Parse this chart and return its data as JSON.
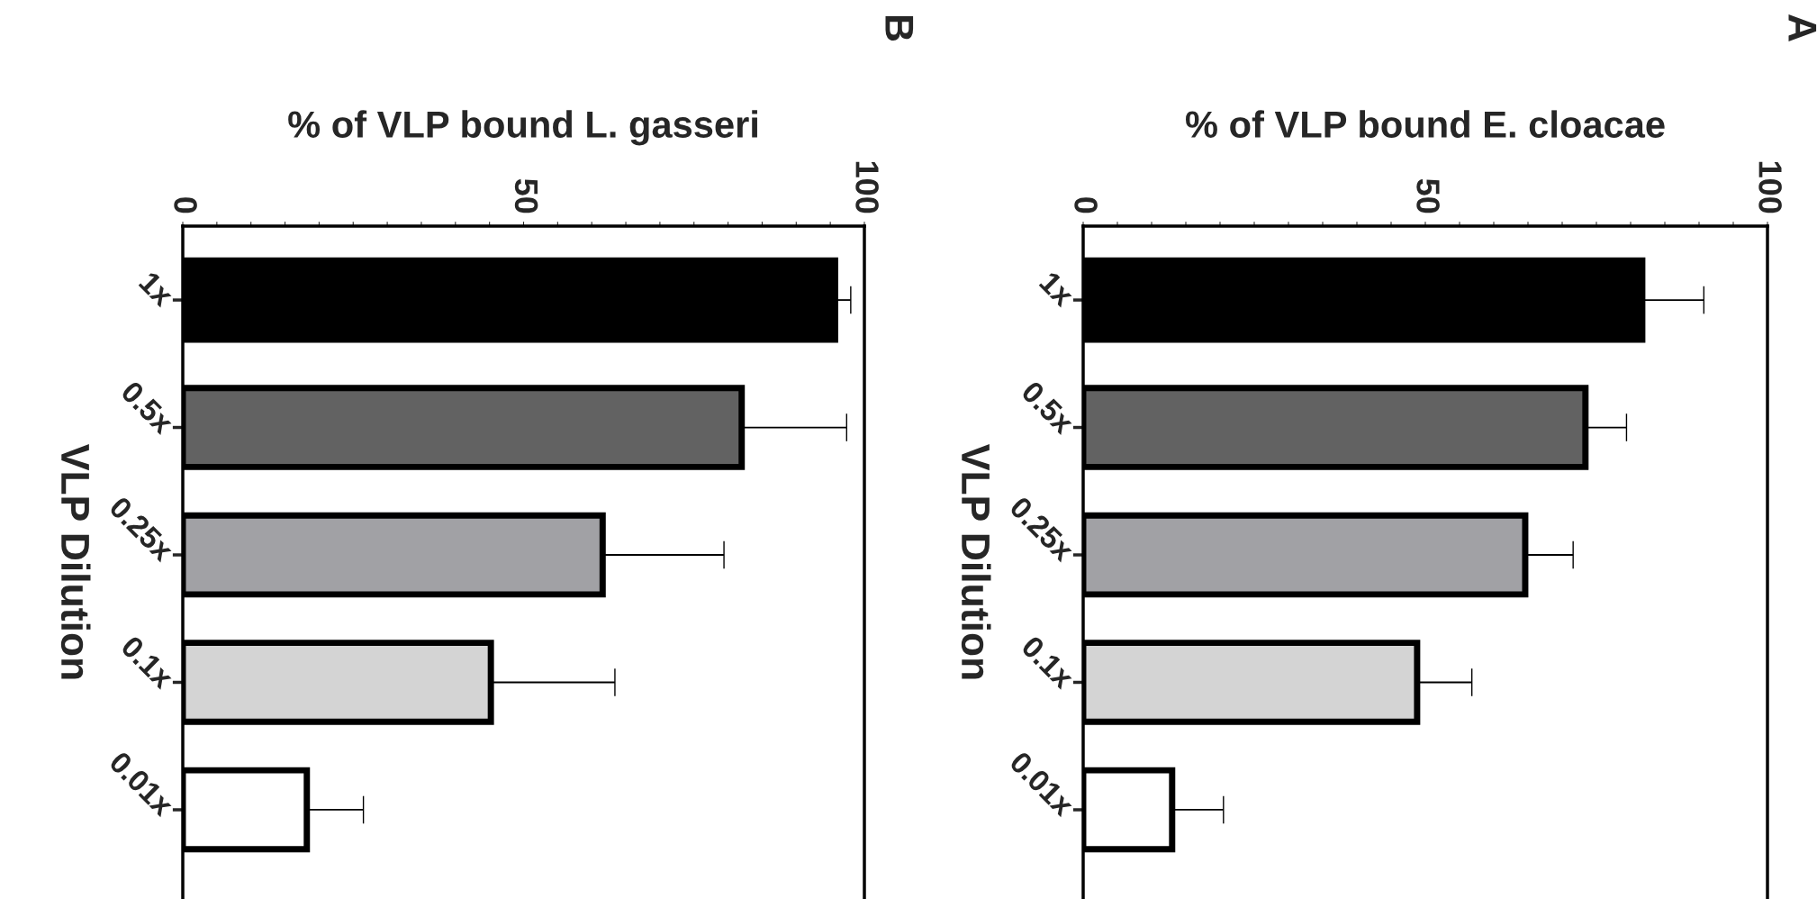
{
  "chart_data": [
    {
      "type": "bar",
      "orientation": "horizontal",
      "title": "A",
      "xlabel": "% of VLP bound E. cloacae",
      "ylabel": "VLP Dilution",
      "categories": [
        "1x",
        "0.5x",
        "0.25x",
        "0.1x",
        "0.01x"
      ],
      "values": [
        81.7,
        73.4,
        64.6,
        48.8,
        13
      ],
      "errors": [
        [
          81.7,
          90.7
        ],
        [
          73.4,
          79.4
        ],
        [
          64.6,
          71.6
        ],
        [
          48.8,
          56.8
        ],
        [
          13,
          20.5
        ]
      ],
      "colors": [
        "#000000",
        "#626262",
        "#a1a1a5",
        "#d4d4d4",
        "#ffffff"
      ],
      "xlim": [
        0,
        100
      ],
      "xticks": [
        0,
        {
          "value": 5,
          "label": null
        },
        {
          "value": 10,
          "label": null
        },
        {
          "value": 15,
          "label": null
        },
        {
          "value": 20,
          "label": null
        },
        {
          "value": 25,
          "label": null
        },
        {
          "value": 30,
          "label": null
        },
        {
          "value": 35,
          "label": null
        },
        {
          "value": 40,
          "label": null
        },
        {
          "value": 45,
          "label": null
        },
        50,
        {
          "value": 55,
          "label": null
        },
        {
          "value": 60,
          "label": null
        },
        {
          "value": 65,
          "label": null
        },
        {
          "value": 70,
          "label": null
        },
        {
          "value": 75,
          "label": null
        },
        {
          "value": 80,
          "label": null
        },
        {
          "value": 85,
          "label": null
        },
        {
          "value": 90,
          "label": null
        },
        {
          "value": 95,
          "label": null
        },
        100
      ],
      "grid": false,
      "legend": false
    },
    {
      "type": "bar",
      "orientation": "horizontal",
      "title": "B",
      "xlabel": "% of VLP bound L. gasseri",
      "ylabel": "VLP Dilution",
      "categories": [
        "1x",
        "0.5x",
        "0.25x",
        "0.1x",
        "0.01x"
      ],
      "values": [
        95.7,
        82,
        61.6,
        45.2,
        18.2
      ],
      "errors": [
        [
          95.7,
          98
        ],
        [
          82,
          97.4
        ],
        [
          61.6,
          79.4
        ],
        [
          45.2,
          63.4
        ],
        [
          18.2,
          26.5
        ]
      ],
      "colors": [
        "#000000",
        "#626262",
        "#a1a1a5",
        "#d4d4d4",
        "#ffffff"
      ],
      "xlim": [
        0,
        100
      ],
      "xticks": [
        0,
        {
          "value": 5,
          "label": null
        },
        {
          "value": 10,
          "label": null
        },
        {
          "value": 15,
          "label": null
        },
        {
          "value": 20,
          "label": null
        },
        {
          "value": 25,
          "label": null
        },
        {
          "value": 30,
          "label": null
        },
        {
          "value": 35,
          "label": null
        },
        {
          "value": 40,
          "label": null
        },
        {
          "value": 45,
          "label": null
        },
        50,
        {
          "value": 55,
          "label": null
        },
        {
          "value": 60,
          "label": null
        },
        {
          "value": 65,
          "label": null
        },
        {
          "value": 70,
          "label": null
        },
        {
          "value": 75,
          "label": null
        },
        {
          "value": 80,
          "label": null
        },
        {
          "value": 85,
          "label": null
        },
        {
          "value": 90,
          "label": null
        },
        {
          "value": 95,
          "label": null
        },
        100
      ],
      "grid": false,
      "legend": false
    }
  ]
}
